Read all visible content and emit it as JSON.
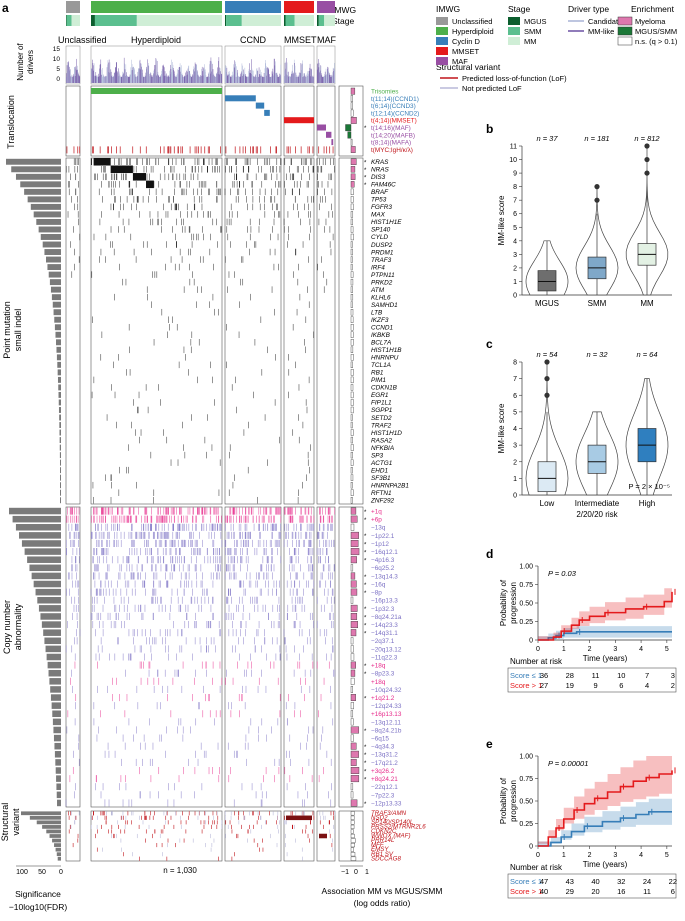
{
  "panel_labels": {
    "a": "a",
    "b": "b",
    "c": "c",
    "d": "d",
    "e": "e"
  },
  "colors": {
    "unclassified": "#999999",
    "hyperdiploid": "#4daf4a",
    "cyclinD": "#377eb8",
    "mmset": "#e41a1c",
    "maf": "#984ea3",
    "mgus": "#0b5e2e",
    "smm": "#5bbf8f",
    "mm": "#cfeed6",
    "candidate": "#a8b3d6",
    "mmlike": "#6a51a3",
    "myeloma": "#de77ae",
    "mgus_smm": "#1b7837",
    "lof": "#c0151b",
    "notlof": "#b9b9d9",
    "purple_driver": "#6a51a3",
    "pink_amp": "#e7298a",
    "cna_del": "#7b70c4"
  },
  "legend": {
    "imwg_title": "IMWG",
    "imwg_items": [
      "Unclassified",
      "Hyperdiploid",
      "Cyclin D",
      "MMSET",
      "MAF"
    ],
    "stage_title": "Stage",
    "stage_items": [
      "MGUS",
      "SMM",
      "MM"
    ],
    "driver_title": "Driver type",
    "driver_items": [
      "Candidate",
      "MM-like"
    ],
    "enrich_title": "Enrichment",
    "enrich_items": [
      "Myeloma",
      "MGUS/SMM",
      "n.s. (q > 0.1)"
    ],
    "sv_title": "Structural variant",
    "sv_items": [
      "Predicted loss-of-function (LoF)",
      "Not predicted LoF"
    ]
  },
  "panel_a": {
    "track_imwg": "IMWG",
    "track_stage": "Stage",
    "groups": [
      "Unclassified",
      "Hyperdiploid",
      "CCND",
      "MMSET",
      "MAF"
    ],
    "drivers_label": [
      "Number of",
      "drivers"
    ],
    "drivers_ticks": [
      "15",
      "10",
      "5",
      "0"
    ],
    "section_labels": {
      "translocation": "Translocation",
      "point": [
        "Point mutation",
        "small indel"
      ],
      "cna": [
        "Copy number",
        "abnormality"
      ],
      "sv": [
        "Structural",
        "variant"
      ]
    },
    "translocation_rows": [
      {
        "label": "Trisomies",
        "color": "#4daf4a",
        "star": false
      },
      {
        "label": "t(11;14)(CCND1)",
        "color": "#377eb8",
        "star": false
      },
      {
        "label": "t(6;14)(CCND3)",
        "color": "#377eb8",
        "star": false
      },
      {
        "label": "t(12;14)(CCND2)",
        "color": "#377eb8",
        "star": false
      },
      {
        "label": "t(4;14)(MMSET)",
        "color": "#e41a1c",
        "star": false
      },
      {
        "label": "t(14;16)(MAF)",
        "color": "#984ea3",
        "star": true
      },
      {
        "label": "t(14;20)(MAFB)",
        "color": "#984ea3",
        "star": false
      },
      {
        "label": "t(8;14)(MAFA)",
        "color": "#984ea3",
        "star": false
      },
      {
        "label": "t(MYC;IgH/κ/λ)",
        "color": "#c0151b",
        "star": false
      }
    ],
    "point_genes": [
      "KRAS",
      "NRAS",
      "DIS3",
      "FAM46C",
      "BRAF",
      "TP53",
      "FGFR3",
      "MAX",
      "HIST1H1E",
      "SP140",
      "CYLD",
      "DUSP2",
      "PRDM1",
      "TRAF3",
      "IRF4",
      "PTPN11",
      "PRKD2",
      "ATM",
      "KLHL6",
      "SAMHD1",
      "LTB",
      "IKZF3",
      "CCND1",
      "IKBKB",
      "BCL7A",
      "HIST1H1B",
      "HNRNPU",
      "TCL1A",
      "RB1",
      "PIM1",
      "CDKN1B",
      "EGR1",
      "FIP1L1",
      "SGPP1",
      "SETD2",
      "TRAF2",
      "HIST1H1D",
      "RASA2",
      "NFKBIA",
      "SP3",
      "ACTG1",
      "EHD1",
      "SF3B1",
      "HNRNPA2B1",
      "RFTN1",
      "ZNF292"
    ],
    "point_star": [
      true,
      true,
      true,
      true
    ],
    "cna_rows": [
      {
        "label": "+1q",
        "type": "amp",
        "star": true
      },
      {
        "label": "+6p",
        "type": "amp",
        "star": true
      },
      {
        "label": "−13q",
        "type": "del",
        "star": false
      },
      {
        "label": "−1p22.1",
        "type": "del",
        "star": true
      },
      {
        "label": "−1p12",
        "type": "del",
        "star": true
      },
      {
        "label": "−16q12.1",
        "type": "del",
        "star": true
      },
      {
        "label": "−4p16.3",
        "type": "del",
        "star": true
      },
      {
        "label": "−6q25.2",
        "type": "del",
        "star": false
      },
      {
        "label": "−13q14.3",
        "type": "del",
        "star": true
      },
      {
        "label": "−16q",
        "type": "del",
        "star": true
      },
      {
        "label": "−8p",
        "type": "del",
        "star": true
      },
      {
        "label": "−16p13.3",
        "type": "del",
        "star": false
      },
      {
        "label": "−1p32.3",
        "type": "del",
        "star": true
      },
      {
        "label": "−8q24.21a",
        "type": "del",
        "star": true
      },
      {
        "label": "−14q23.3",
        "type": "del",
        "star": true
      },
      {
        "label": "−14q31.1",
        "type": "del",
        "star": true
      },
      {
        "label": "−2q37.1",
        "type": "del",
        "star": false
      },
      {
        "label": "−20q13.12",
        "type": "del",
        "star": false
      },
      {
        "label": "−11q22.3",
        "type": "del",
        "star": false
      },
      {
        "label": "+18q",
        "type": "amp",
        "star": true
      },
      {
        "label": "−8p23.3",
        "type": "del",
        "star": true
      },
      {
        "label": "+18q",
        "type": "amp",
        "star": false
      },
      {
        "label": "−10q24.32",
        "type": "del",
        "star": false
      },
      {
        "label": "+1q21.2",
        "type": "amp",
        "star": true
      },
      {
        "label": "−12q24.33",
        "type": "del",
        "star": false
      },
      {
        "label": "+16p13.13",
        "type": "amp",
        "star": false
      },
      {
        "label": "−13q12.11",
        "type": "del",
        "star": false
      },
      {
        "label": "−8q24.21b",
        "type": "del",
        "star": true
      },
      {
        "label": "−6q15",
        "type": "del",
        "star": false
      },
      {
        "label": "−4q34.3",
        "type": "del",
        "star": true
      },
      {
        "label": "−13q31.2",
        "type": "del",
        "star": true
      },
      {
        "label": "−17q21.2",
        "type": "del",
        "star": true
      },
      {
        "label": "+3q26.2",
        "type": "amp",
        "star": true
      },
      {
        "label": "+8q24.21",
        "type": "amp",
        "star": true
      },
      {
        "label": "−22q12.1",
        "type": "del",
        "star": false
      },
      {
        "label": "−7p22.3",
        "type": "del",
        "star": false
      },
      {
        "label": "−12p13.33",
        "type": "del",
        "star": true
      }
    ],
    "sv_rows": [
      "TRAF3/AMN",
      "NSD2",
      "SP140/SP140L",
      "PRSS2/MTRNR2L6",
      "CDKN2C",
      "WWOX (MAF)",
      "PRR14L",
      "MFF",
      "EMSY",
      "RB1 SV",
      "SDCCAG8"
    ],
    "n_label": "n = 1,030",
    "sig_title": "Significance",
    "sig_sub": "−10log10(FDR)",
    "sig_ticks": [
      "100",
      "50",
      "0"
    ],
    "assoc_title": "Association MM vs MGUS/SMM",
    "assoc_sub": "(log odds ratio)",
    "assoc_ticks": [
      "−1",
      "0",
      "1"
    ]
  },
  "panel_b": {
    "ylabel": "MM-like score",
    "yticks": [
      "0",
      "1",
      "2",
      "3",
      "4",
      "5",
      "6",
      "7",
      "8",
      "9",
      "10",
      "11"
    ],
    "categories": [
      "MGUS",
      "SMM",
      "MM"
    ],
    "n_labels": [
      "n = 37",
      "n = 181",
      "n = 812"
    ]
  },
  "panel_c": {
    "ylabel": "MM-like score",
    "yticks": [
      "0",
      "1",
      "2",
      "3",
      "4",
      "5",
      "6",
      "7",
      "8"
    ],
    "categories": [
      "Low",
      "Intermediate",
      "High"
    ],
    "xlabel": "2/20/20 risk",
    "n_labels": [
      "n = 54",
      "n = 32",
      "n = 64"
    ],
    "pvalue": "P = 2 × 10⁻⁵"
  },
  "panel_d": {
    "ylabel": [
      "Probability of",
      "progression"
    ],
    "yticks": [
      "0",
      "0.25",
      "0.50",
      "0.75",
      "1.00"
    ],
    "xticks": [
      "0",
      "1",
      "2",
      "3",
      "4",
      "5"
    ],
    "xlabel": "Time (years)",
    "pvalue": "P = 0.03",
    "risk_title": "Number at risk",
    "risk_rows": [
      {
        "label": "Score ≤ 1",
        "values": [
          "36",
          "28",
          "11",
          "10",
          "7",
          "3"
        ],
        "color": "#377eb8"
      },
      {
        "label": "Score > 1",
        "values": [
          "27",
          "19",
          "9",
          "6",
          "4",
          "2"
        ],
        "color": "#e41a1c"
      }
    ]
  },
  "panel_e": {
    "ylabel": [
      "Probability of",
      "progression"
    ],
    "yticks": [
      "0",
      "0.25",
      "0.50",
      "0.75",
      "1.00"
    ],
    "xticks": [
      "0",
      "1",
      "2",
      "3",
      "4",
      "5"
    ],
    "xlabel": "Time (years)",
    "pvalue": "P = 0.00001",
    "risk_title": "Number at risk",
    "risk_rows": [
      {
        "label": "Score ≤ 1",
        "values": [
          "47",
          "43",
          "40",
          "32",
          "24",
          "22"
        ],
        "color": "#377eb8"
      },
      {
        "label": "Score > 1",
        "values": [
          "40",
          "29",
          "20",
          "16",
          "11",
          "6"
        ],
        "color": "#e41a1c"
      }
    ]
  },
  "chart_data": [
    {
      "type": "heatmap",
      "panel": "a",
      "groups": [
        "Unclassified",
        "Hyperdiploid",
        "CCND",
        "MMSET",
        "MAF"
      ],
      "n": 1030,
      "drivers_axis": {
        "ylim": [
          0,
          15
        ],
        "ylabel": "Number of drivers"
      }
    },
    {
      "type": "box",
      "panel": "b",
      "categories": [
        "MGUS",
        "SMM",
        "MM"
      ],
      "ylabel": "MM-like score",
      "ylim": [
        0,
        11
      ],
      "series": [
        {
          "name": "MGUS",
          "min": 0,
          "q1": 0.3,
          "median": 1,
          "q3": 1.8,
          "max": 4,
          "outliers": [],
          "color": "#6e6e6e"
        },
        {
          "name": "SMM",
          "min": 0,
          "q1": 1.2,
          "median": 2,
          "q3": 2.8,
          "max": 6,
          "outliers": [
            7,
            8
          ],
          "color": "#7fa8c9"
        },
        {
          "name": "MM",
          "min": 0,
          "q1": 2.2,
          "median": 3,
          "q3": 3.8,
          "max": 8,
          "outliers": [
            9,
            10,
            11
          ],
          "color": "#e3f1e4"
        }
      ]
    },
    {
      "type": "box",
      "panel": "c",
      "categories": [
        "Low",
        "Intermediate",
        "High"
      ],
      "ylabel": "MM-like score",
      "xlabel": "2/20/20 risk",
      "ylim": [
        0,
        8
      ],
      "series": [
        {
          "name": "Low",
          "min": 0,
          "q1": 0.2,
          "median": 1,
          "q3": 2,
          "max": 5,
          "outliers": [
            6,
            7,
            8
          ],
          "color": "#dceaf4"
        },
        {
          "name": "Intermediate",
          "min": 0,
          "q1": 1.3,
          "median": 2,
          "q3": 3,
          "max": 5,
          "outliers": [],
          "color": "#a8cbe4"
        },
        {
          "name": "High",
          "min": 0,
          "q1": 2,
          "median": 3,
          "q3": 4,
          "max": 7,
          "outliers": [],
          "color": "#2f7fbf"
        }
      ]
    },
    {
      "type": "line",
      "panel": "d",
      "xlim": [
        0,
        5.2
      ],
      "ylim": [
        0,
        1
      ],
      "xlabel": "Time (years)",
      "ylabel": "Probability of progression",
      "series": [
        {
          "name": "Score ≤ 1",
          "color": "#377eb8",
          "x": [
            0,
            0.4,
            0.7,
            1.0,
            1.5,
            5.2
          ],
          "y": [
            0,
            0.03,
            0.06,
            0.09,
            0.11,
            0.11
          ]
        },
        {
          "name": "Score > 1",
          "color": "#e41a1c",
          "x": [
            0,
            0.6,
            0.9,
            1.3,
            1.6,
            2.0,
            2.6,
            3.4,
            4.1,
            4.9,
            5.2
          ],
          "y": [
            0,
            0.04,
            0.12,
            0.2,
            0.27,
            0.32,
            0.37,
            0.42,
            0.45,
            0.52,
            0.65
          ]
        }
      ]
    },
    {
      "type": "line",
      "panel": "e",
      "xlim": [
        0,
        5.2
      ],
      "ylim": [
        0,
        1
      ],
      "xlabel": "Time (years)",
      "ylabel": "Probability of progression",
      "series": [
        {
          "name": "Score ≤ 1",
          "color": "#377eb8",
          "x": [
            0,
            0.5,
            0.9,
            1.3,
            1.8,
            2.5,
            3.2,
            3.8,
            4.3,
            5.2
          ],
          "y": [
            0,
            0.04,
            0.1,
            0.16,
            0.22,
            0.27,
            0.31,
            0.35,
            0.38,
            0.38
          ]
        },
        {
          "name": "Score > 1",
          "color": "#e41a1c",
          "x": [
            0,
            0.4,
            0.7,
            1.0,
            1.4,
            1.8,
            2.2,
            2.7,
            3.2,
            3.7,
            4.2,
            4.7,
            5.2
          ],
          "y": [
            0,
            0.1,
            0.2,
            0.3,
            0.4,
            0.47,
            0.53,
            0.6,
            0.66,
            0.72,
            0.76,
            0.8,
            0.84
          ]
        }
      ]
    }
  ]
}
